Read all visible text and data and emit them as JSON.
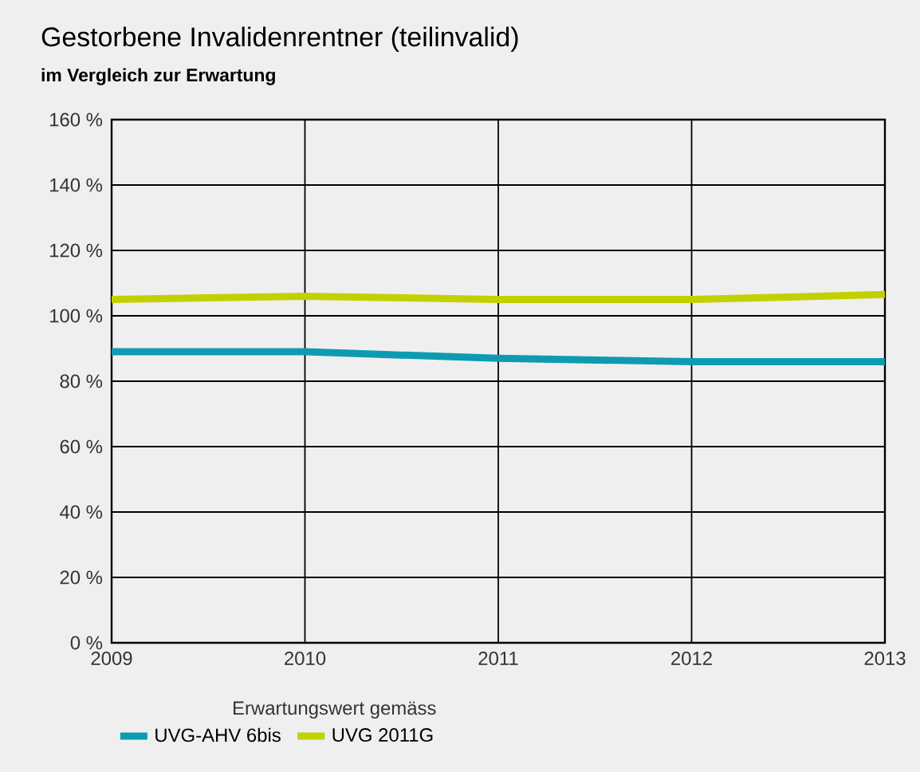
{
  "chart_data": {
    "type": "line",
    "title": "Gestorbene Invalidenrentner (teilinvalid)",
    "subtitle": "im Vergleich zur Erwartung",
    "x": [
      2009,
      2010,
      2011,
      2012,
      2013
    ],
    "xlim": [
      2009,
      2013
    ],
    "xticks": [
      2009,
      2010,
      2011,
      2012,
      2013
    ],
    "ylim": [
      0,
      160
    ],
    "yticks": [
      {
        "value": 0,
        "label": "0 %"
      },
      {
        "value": 20,
        "label": "20 %"
      },
      {
        "value": 40,
        "label": "40 %"
      },
      {
        "value": 60,
        "label": "60 %"
      },
      {
        "value": 80,
        "label": "80 %"
      },
      {
        "value": 100,
        "label": "100 %"
      },
      {
        "value": 120,
        "label": "120 %"
      },
      {
        "value": 140,
        "label": "140 %"
      },
      {
        "value": 160,
        "label": "160 %"
      }
    ],
    "grid": true,
    "legend": "bottom",
    "legend_title": "Erwartungswert gemäss",
    "marker": "none",
    "line_style": "solid",
    "series": [
      {
        "name": "UVG-AHV 6bis",
        "color": "#0e9bb1",
        "values": [
          89,
          89,
          87,
          86,
          86
        ]
      },
      {
        "name": "UVG 2011G",
        "color": "#c3d000",
        "values": [
          105,
          106,
          105,
          105,
          106.5
        ]
      }
    ]
  }
}
